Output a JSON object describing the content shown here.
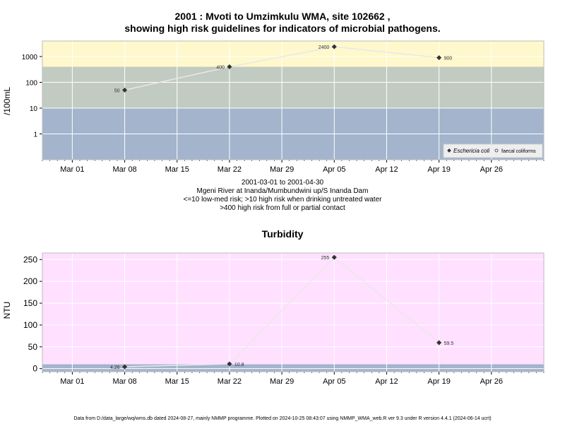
{
  "chart_data": [
    {
      "type": "line",
      "title_line1": "2001 : Mvoti to Umzimkulu WMA, site 102662 ,",
      "title_line2": "showing high risk guidelines for indicators of microbial pathogens.",
      "ylabel": "/100mL",
      "yscale": "log",
      "ylim": [
        0.1,
        4000
      ],
      "yticks": [
        "1",
        "10",
        "100",
        "1000"
      ],
      "xticks": [
        "Mar 01",
        "Mar 08",
        "Mar 15",
        "Mar 22",
        "Mar 29",
        "Apr 05",
        "Apr 12",
        "Apr 19",
        "Apr 26"
      ],
      "xlim": [
        "2001-02-25",
        "2001-05-03"
      ],
      "bands": [
        {
          "from": 0.1,
          "to": 10,
          "color": "#a3b4cc"
        },
        {
          "from": 10,
          "to": 400,
          "color": "#c2cbc2"
        },
        {
          "from": 400,
          "to": 4000,
          "color": "#fff8cc"
        }
      ],
      "series": [
        {
          "name": "Eschericia coli",
          "points": [
            {
              "date": "2001-03-08",
              "value": 50,
              "label": "50"
            },
            {
              "date": "2001-03-22",
              "value": 400,
              "label": "400"
            },
            {
              "date": "2001-04-05",
              "value": 2400,
              "label": "2400"
            },
            {
              "date": "2001-04-19",
              "value": 900,
              "label": "900"
            }
          ]
        }
      ],
      "legend": {
        "placement": "bottom-right",
        "items": [
          "Eschericia coli",
          "faecal coliforms"
        ]
      },
      "notes": [
        "2001-03-01 to 2001-04-30",
        "Mgeni River at Inanda/Mumbundwini up/S Inanda Dam",
        "<=10 low-med risk; >10 high risk when drinking untreated water",
        ">400 high risk from full or partial contact"
      ],
      "grid": true
    },
    {
      "type": "line",
      "title": "Turbidity",
      "ylabel": "NTU",
      "ylim": [
        -7,
        265
      ],
      "yticks": [
        "0",
        "50",
        "100",
        "150",
        "200",
        "250"
      ],
      "xticks": [
        "Mar 01",
        "Mar 08",
        "Mar 15",
        "Mar 22",
        "Mar 29",
        "Apr 05",
        "Apr 12",
        "Apr 19",
        "Apr 26"
      ],
      "xlim": [
        "2001-02-25",
        "2001-05-03"
      ],
      "bands": [
        {
          "from": -7,
          "to": 10,
          "color": "#a3b4cc"
        },
        {
          "from": 10,
          "to": 265,
          "color": "#ffe0ff"
        }
      ],
      "series": [
        {
          "points": [
            {
              "date": "2001-03-08",
              "value": 4.26,
              "label": "4.26"
            },
            {
              "date": "2001-03-22",
              "value": 10.8,
              "label": "10.8"
            },
            {
              "date": "2001-04-05",
              "value": 255,
              "label": "255"
            },
            {
              "date": "2001-04-19",
              "value": 59.5,
              "label": "59.5"
            }
          ]
        }
      ],
      "grid": true
    }
  ],
  "footer": "Data from D:/data_large/wq/wms.db dated 2024-08-27, mainly NMMP programme. Plotted on 2024-10-25 08:43:07 using NMMP_WMA_web.R ver 9.3 under R version 4.4.1 (2024-06-14 ucrt)",
  "colors": {
    "line": "#e8e8e8",
    "point": "#333333",
    "grid": "#ffffff",
    "border": "#bbbbbb"
  }
}
